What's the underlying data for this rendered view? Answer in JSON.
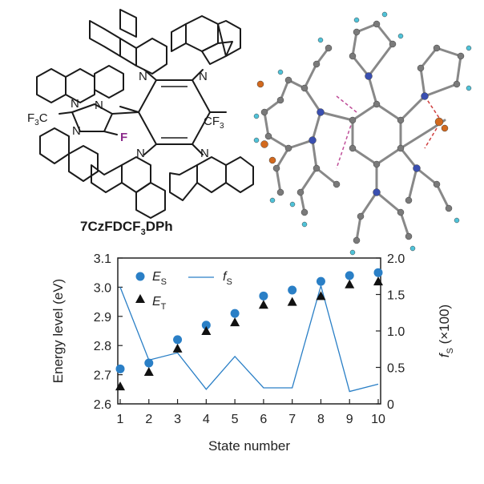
{
  "molecule": {
    "compound_name": "7CzFDCF",
    "compound_sub": "3",
    "compound_suffix": "DPh",
    "atoms": {
      "n": "N",
      "f": "F",
      "cf3_left": "F",
      "cf3_left_sub": "3",
      "cf3_left_c": "C",
      "cf3_right": "CF",
      "cf3_right_sub": "3"
    },
    "colors": {
      "fluorine": "#8b2a8b",
      "carbon": "#7a7a7a",
      "nitrogen": "#3a4fb0",
      "hydrogen": "#4fc3d9",
      "oxygen_orange": "#d2691e"
    }
  },
  "chart_data": {
    "type": "scatter",
    "x": [
      1,
      2,
      3,
      4,
      5,
      6,
      7,
      8,
      9,
      10
    ],
    "series": [
      {
        "name": "E_S",
        "marker": "circle",
        "color": "#2a7fc6",
        "axis": "left",
        "values": [
          2.72,
          2.74,
          2.82,
          2.87,
          2.91,
          2.97,
          2.99,
          3.02,
          3.04,
          3.05
        ]
      },
      {
        "name": "E_T",
        "marker": "triangle",
        "color": "#111111",
        "axis": "left",
        "values": [
          2.66,
          2.71,
          2.79,
          2.85,
          2.88,
          2.94,
          2.95,
          2.97,
          3.01,
          3.02
        ]
      },
      {
        "name": "f_S",
        "marker": "line",
        "color": "#2a7fc6",
        "axis": "right",
        "values": [
          1.6,
          0.6,
          0.7,
          0.2,
          0.65,
          0.22,
          0.22,
          1.62,
          0.17,
          0.27
        ]
      }
    ],
    "xlabel": "State number",
    "ylabel": "Energy level (eV)",
    "y2label_main": "f",
    "y2label_sub": "S",
    "y2label_tail": " (×100)",
    "ylim": [
      2.6,
      3.1
    ],
    "y2lim": [
      0,
      2.0
    ],
    "xlim": [
      1,
      10
    ],
    "yticks": [
      "2.6",
      "2.7",
      "2.8",
      "2.9",
      "3.0",
      "3.1"
    ],
    "y2ticks": [
      "0",
      "0.5",
      "1.0",
      "1.5",
      "2.0"
    ],
    "xticks": [
      "1",
      "2",
      "3",
      "4",
      "5",
      "6",
      "7",
      "8",
      "9",
      "10"
    ],
    "legend": {
      "es_main": "E",
      "es_sub": "S",
      "et_main": "E",
      "et_sub": "T",
      "fs_main": "f",
      "fs_sub": "S",
      "placement": "top-left"
    },
    "grid": false
  }
}
